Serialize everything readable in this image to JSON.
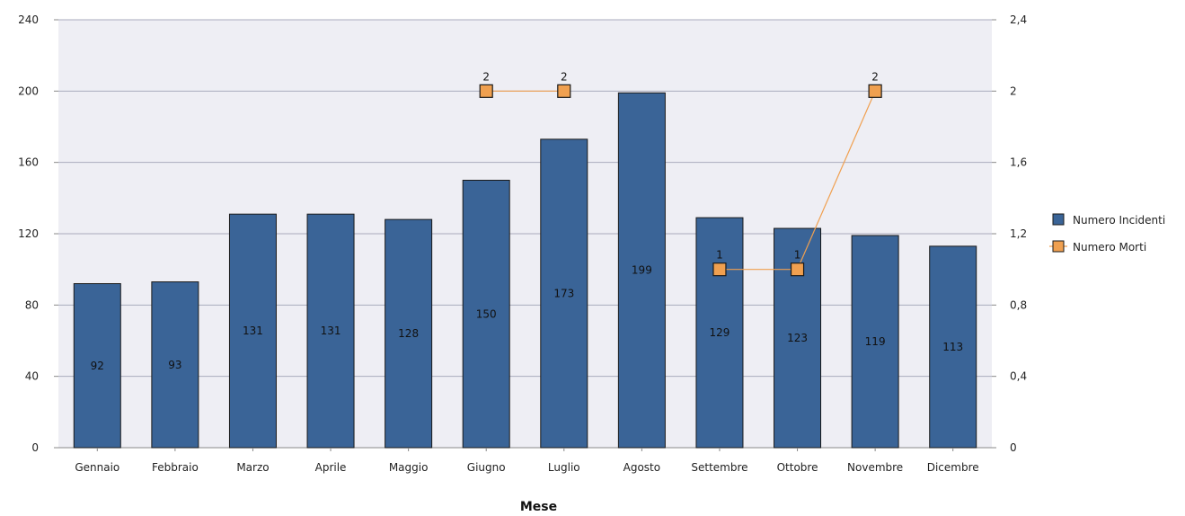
{
  "chart_data": {
    "type": "bar",
    "xlabel": "Mese",
    "categories": [
      "Gennaio",
      "Febbraio",
      "Marzo",
      "Aprile",
      "Maggio",
      "Giugno",
      "Luglio",
      "Agosto",
      "Settembre",
      "Ottobre",
      "Novembre",
      "Dicembre"
    ],
    "series": [
      {
        "name": "Numero Incidenti",
        "type": "bar",
        "axis": "left",
        "values": [
          92,
          93,
          131,
          131,
          128,
          150,
          173,
          199,
          129,
          123,
          119,
          113
        ]
      },
      {
        "name": "Numero Morti",
        "type": "line",
        "axis": "right",
        "values": [
          null,
          null,
          null,
          null,
          null,
          2,
          2,
          null,
          1,
          1,
          2,
          null
        ]
      }
    ],
    "ylim_left": [
      0,
      240
    ],
    "yticks_left": [
      "0",
      "40",
      "80",
      "120",
      "160",
      "200",
      "240"
    ],
    "ylim_right": [
      0,
      2.4
    ],
    "yticks_right": [
      "0",
      "0,4",
      "0,8",
      "1,2",
      "1,6",
      "2",
      "2,4"
    ],
    "grid": true,
    "legend_position": "right",
    "colors": {
      "bar": "#3a6497",
      "line": "#f0a050",
      "plot_bg": "#eeeef4",
      "grid": "#a9abbd"
    }
  }
}
